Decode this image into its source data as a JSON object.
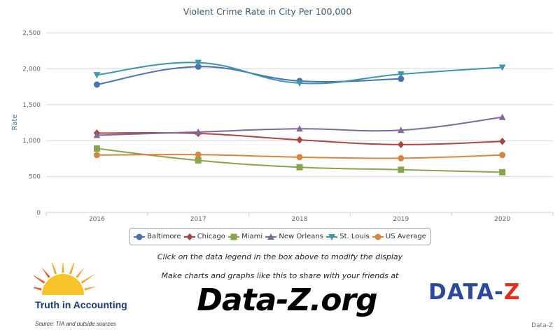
{
  "chart_data": {
    "type": "line",
    "title": "Violent Crime Rate in City Per 100,000",
    "ylabel": "Rate",
    "xlabel": "",
    "x": [
      "2016",
      "2017",
      "2018",
      "2019",
      "2020"
    ],
    "ylim": [
      0,
      2500
    ],
    "yticks": [
      0,
      500,
      1000,
      1500,
      2000,
      2500
    ],
    "ytick_labels": [
      "0",
      "500",
      "1,000",
      "1,500",
      "2,000",
      "2,500"
    ],
    "grid": true,
    "legend_position": "bottom",
    "series": [
      {
        "name": "Baltimore",
        "color": "#4a72b0",
        "marker": "circle",
        "values": [
          1780,
          2030,
          1830,
          1860,
          null
        ]
      },
      {
        "name": "Chicago",
        "color": "#aa4643",
        "marker": "diamond",
        "values": [
          1105,
          1100,
          1010,
          945,
          990
        ]
      },
      {
        "name": "Miami",
        "color": "#89a54e",
        "marker": "square",
        "values": [
          890,
          725,
          630,
          595,
          560
        ]
      },
      {
        "name": "New Orleans",
        "color": "#80699b",
        "marker": "triangle",
        "values": [
          1075,
          1120,
          1165,
          1145,
          1325
        ]
      },
      {
        "name": "St. Louis",
        "color": "#3d96ae",
        "marker": "triangle-down",
        "values": [
          1915,
          2085,
          1800,
          1925,
          2020
        ]
      },
      {
        "name": "US Average",
        "color": "#db843d",
        "marker": "circle",
        "values": [
          800,
          805,
          770,
          755,
          800
        ]
      }
    ]
  },
  "notes": {
    "legend_hint": "Click on the data legend in the box above to modify the display",
    "share": "Make charts and graphs like this to share with your friends at"
  },
  "branding": {
    "site": "Data-Z.org",
    "tia_name": "Truth in Accounting",
    "source": "Source: TIA and outside sources",
    "dz_logo_left": "DATA-",
    "dz_logo_right": "Z",
    "credit": "Data-Z",
    "tia_logo_color": "#f5a623",
    "dz_color": "#2b4a9c",
    "dz_accent": "#e0301e"
  }
}
